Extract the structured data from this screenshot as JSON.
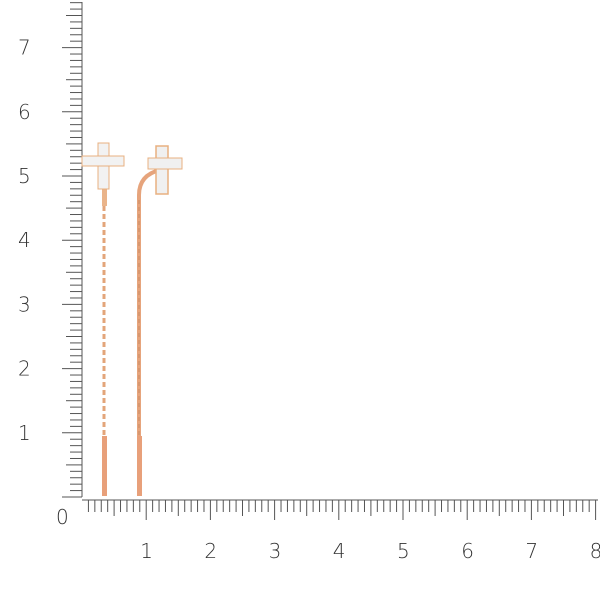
{
  "ruler": {
    "vertical_labels": [
      "1",
      "2",
      "3",
      "4",
      "5",
      "6",
      "7"
    ],
    "horizontal_labels": [
      "1",
      "2",
      "3",
      "4",
      "5",
      "6",
      "7",
      "8"
    ],
    "origin_label": "0",
    "tick_color": "#555555"
  },
  "product": {
    "metal_color": "#e8a87c",
    "stone_color": "#dfe3ea"
  }
}
